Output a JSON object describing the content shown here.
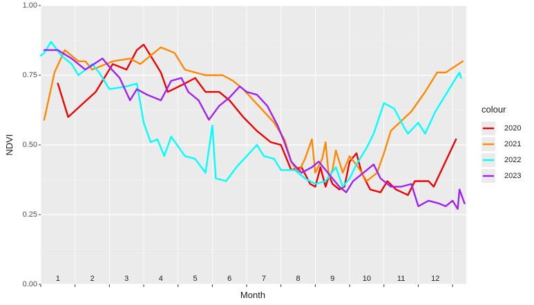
{
  "chart_data": {
    "type": "line",
    "xlabel": "Month",
    "ylabel": "NDVI",
    "xlim": [
      0,
      12.4
    ],
    "ylim": [
      0,
      1
    ],
    "y_ticks": [
      0,
      0.25,
      0.5,
      0.75,
      1
    ],
    "y_tick_labels": [
      "0.00",
      "0.25",
      "0.50",
      "0.75",
      "1.00"
    ],
    "month_labels": [
      "1",
      "2",
      "3",
      "4",
      "5",
      "6",
      "7",
      "8",
      "9",
      "10",
      "11",
      "12"
    ],
    "grid": true,
    "legend": {
      "title": "colour",
      "position": "right"
    },
    "series": [
      {
        "name": "2020",
        "color": "#ee0000",
        "points": [
          [
            0.5,
            0.72
          ],
          [
            0.8,
            0.6
          ],
          [
            1.6,
            0.69
          ],
          [
            2.1,
            0.79
          ],
          [
            2.5,
            0.77
          ],
          [
            2.8,
            0.84
          ],
          [
            3.0,
            0.86
          ],
          [
            3.2,
            0.82
          ],
          [
            3.5,
            0.76
          ],
          [
            3.7,
            0.69
          ],
          [
            4.2,
            0.72
          ],
          [
            4.5,
            0.74
          ],
          [
            4.8,
            0.69
          ],
          [
            5.2,
            0.69
          ],
          [
            5.5,
            0.66
          ],
          [
            5.9,
            0.6
          ],
          [
            6.3,
            0.55
          ],
          [
            6.7,
            0.51
          ],
          [
            7.0,
            0.5
          ],
          [
            7.3,
            0.41
          ],
          [
            7.6,
            0.42
          ],
          [
            7.85,
            0.36
          ],
          [
            8.0,
            0.35
          ],
          [
            8.15,
            0.42
          ],
          [
            8.3,
            0.35
          ],
          [
            8.4,
            0.39
          ],
          [
            8.5,
            0.36
          ],
          [
            8.7,
            0.34
          ],
          [
            8.85,
            0.35
          ],
          [
            9.0,
            0.44
          ],
          [
            9.2,
            0.47
          ],
          [
            9.35,
            0.4
          ],
          [
            9.6,
            0.34
          ],
          [
            9.9,
            0.33
          ],
          [
            10.1,
            0.37
          ],
          [
            10.35,
            0.34
          ],
          [
            10.7,
            0.32
          ],
          [
            10.9,
            0.37
          ],
          [
            11.3,
            0.37
          ],
          [
            11.45,
            0.35
          ],
          [
            12.1,
            0.52
          ]
        ]
      },
      {
        "name": "2021",
        "color": "#ff8800",
        "points": [
          [
            0.1,
            0.59
          ],
          [
            0.4,
            0.76
          ],
          [
            0.7,
            0.84
          ],
          [
            1.1,
            0.8
          ],
          [
            1.3,
            0.8
          ],
          [
            1.5,
            0.77
          ],
          [
            2.1,
            0.8
          ],
          [
            2.6,
            0.81
          ],
          [
            2.9,
            0.79
          ],
          [
            3.2,
            0.82
          ],
          [
            3.5,
            0.85
          ],
          [
            3.9,
            0.83
          ],
          [
            4.2,
            0.77
          ],
          [
            4.5,
            0.76
          ],
          [
            4.8,
            0.75
          ],
          [
            5.0,
            0.75
          ],
          [
            5.3,
            0.75
          ],
          [
            5.6,
            0.73
          ],
          [
            5.9,
            0.7
          ],
          [
            6.2,
            0.66
          ],
          [
            6.5,
            0.62
          ],
          [
            6.8,
            0.58
          ],
          [
            7.1,
            0.52
          ],
          [
            7.3,
            0.44
          ],
          [
            7.5,
            0.4
          ],
          [
            7.7,
            0.45
          ],
          [
            7.9,
            0.52
          ],
          [
            8.0,
            0.4
          ],
          [
            8.2,
            0.45
          ],
          [
            8.3,
            0.51
          ],
          [
            8.4,
            0.38
          ],
          [
            8.5,
            0.41
          ],
          [
            8.6,
            0.48
          ],
          [
            8.8,
            0.4
          ],
          [
            9.0,
            0.46
          ],
          [
            9.25,
            0.42
          ],
          [
            9.5,
            0.37
          ],
          [
            9.8,
            0.4
          ],
          [
            10.0,
            0.47
          ],
          [
            10.2,
            0.55
          ],
          [
            10.8,
            0.62
          ],
          [
            11.2,
            0.69
          ],
          [
            11.55,
            0.76
          ],
          [
            11.8,
            0.76
          ],
          [
            12.3,
            0.8
          ]
        ]
      },
      {
        "name": "2022",
        "color": "#00ffff",
        "points": [
          [
            0.0,
            0.82
          ],
          [
            0.1,
            0.83
          ],
          [
            0.3,
            0.87
          ],
          [
            0.6,
            0.82
          ],
          [
            0.9,
            0.79
          ],
          [
            1.1,
            0.75
          ],
          [
            1.5,
            0.79
          ],
          [
            1.7,
            0.76
          ],
          [
            2.0,
            0.7
          ],
          [
            2.5,
            0.71
          ],
          [
            2.8,
            0.72
          ],
          [
            3.0,
            0.58
          ],
          [
            3.2,
            0.51
          ],
          [
            3.4,
            0.52
          ],
          [
            3.6,
            0.46
          ],
          [
            3.8,
            0.53
          ],
          [
            4.2,
            0.46
          ],
          [
            4.5,
            0.45
          ],
          [
            4.8,
            0.4
          ],
          [
            5.0,
            0.57
          ],
          [
            5.1,
            0.38
          ],
          [
            5.4,
            0.37
          ],
          [
            5.7,
            0.42
          ],
          [
            6.0,
            0.46
          ],
          [
            6.3,
            0.5
          ],
          [
            6.5,
            0.46
          ],
          [
            6.8,
            0.45
          ],
          [
            7.0,
            0.41
          ],
          [
            7.4,
            0.41
          ],
          [
            7.7,
            0.38
          ],
          [
            8.0,
            0.36
          ],
          [
            8.3,
            0.37
          ],
          [
            8.6,
            0.42
          ],
          [
            8.8,
            0.35
          ],
          [
            9.0,
            0.38
          ],
          [
            9.2,
            0.43
          ],
          [
            9.5,
            0.49
          ],
          [
            9.7,
            0.54
          ],
          [
            10.0,
            0.65
          ],
          [
            10.3,
            0.63
          ],
          [
            10.6,
            0.56
          ],
          [
            10.7,
            0.54
          ],
          [
            11.0,
            0.58
          ],
          [
            11.2,
            0.54
          ],
          [
            11.5,
            0.62
          ],
          [
            12.1,
            0.74
          ],
          [
            12.2,
            0.76
          ],
          [
            12.25,
            0.74
          ]
        ]
      },
      {
        "name": "2023",
        "color": "#a020f0",
        "points": [
          [
            0.1,
            0.84
          ],
          [
            0.5,
            0.84
          ],
          [
            0.9,
            0.81
          ],
          [
            1.3,
            0.77
          ],
          [
            1.8,
            0.81
          ],
          [
            2.0,
            0.78
          ],
          [
            2.3,
            0.74
          ],
          [
            2.6,
            0.66
          ],
          [
            2.8,
            0.7
          ],
          [
            3.1,
            0.68
          ],
          [
            3.5,
            0.66
          ],
          [
            3.8,
            0.73
          ],
          [
            4.1,
            0.74
          ],
          [
            4.3,
            0.69
          ],
          [
            4.6,
            0.66
          ],
          [
            4.9,
            0.59
          ],
          [
            5.2,
            0.64
          ],
          [
            5.5,
            0.67
          ],
          [
            5.8,
            0.71
          ],
          [
            6.0,
            0.69
          ],
          [
            6.3,
            0.68
          ],
          [
            6.6,
            0.64
          ],
          [
            6.9,
            0.57
          ],
          [
            7.1,
            0.51
          ],
          [
            7.3,
            0.44
          ],
          [
            7.6,
            0.4
          ],
          [
            7.9,
            0.42
          ],
          [
            8.1,
            0.44
          ],
          [
            8.3,
            0.41
          ],
          [
            8.5,
            0.38
          ],
          [
            8.7,
            0.35
          ],
          [
            8.9,
            0.33
          ],
          [
            9.1,
            0.37
          ],
          [
            9.4,
            0.4
          ],
          [
            9.7,
            0.43
          ],
          [
            9.9,
            0.38
          ],
          [
            10.2,
            0.35
          ],
          [
            10.5,
            0.35
          ],
          [
            10.8,
            0.36
          ],
          [
            11.0,
            0.28
          ],
          [
            11.3,
            0.3
          ],
          [
            11.6,
            0.29
          ],
          [
            11.8,
            0.28
          ],
          [
            12.0,
            0.3
          ],
          [
            12.15,
            0.27
          ],
          [
            12.2,
            0.34
          ],
          [
            12.35,
            0.29
          ]
        ]
      }
    ]
  }
}
